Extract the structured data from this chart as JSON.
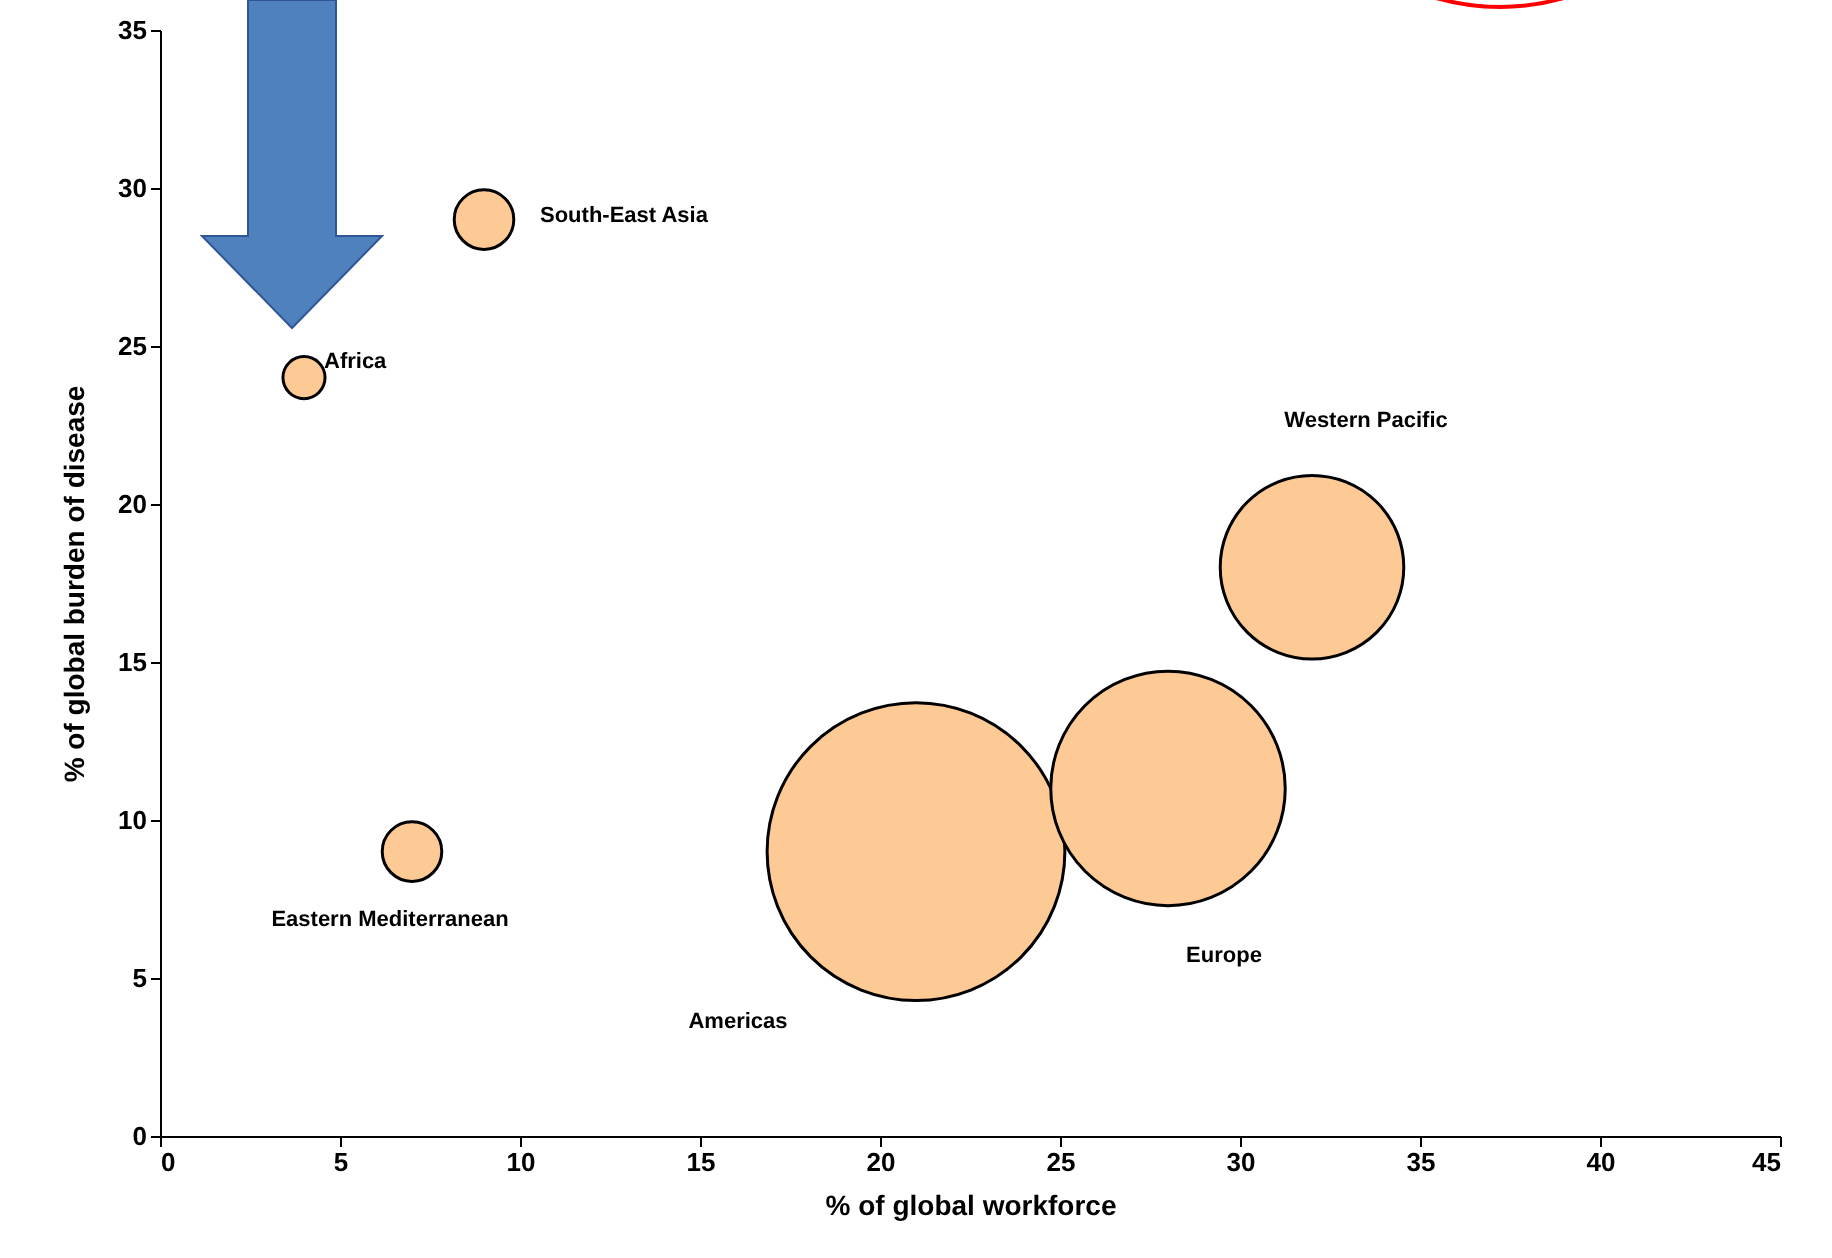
{
  "chart_data": {
    "type": "bubble",
    "xlabel": "% of global workforce",
    "ylabel": "% of global burden of disease",
    "x": [
      4,
      9,
      7,
      21,
      28,
      32
    ],
    "values": [
      24,
      29,
      9,
      9,
      11,
      18
    ],
    "sizes": [
      0.02,
      0.04,
      0.04,
      1,
      0.62,
      0.38
    ],
    "color": "#fdc994",
    "xlim": [
      0,
      45
    ],
    "xticks": [
      0,
      5,
      10,
      15,
      20,
      25,
      30,
      35,
      40,
      45
    ],
    "ylim": [
      0,
      35
    ],
    "yticks": [
      0,
      5,
      10,
      15,
      20,
      25,
      30,
      35
    ],
    "grid": false,
    "legend": false,
    "annotations": [
      {
        "text": "Africa",
        "x": 4,
        "y": 24
      },
      {
        "text": "South-East Asia",
        "x": 9,
        "y": 29
      },
      {
        "text": "Eastern Mediterranean",
        "x": 7,
        "y": 9
      },
      "Americas",
      "Europe",
      "Western Pacific"
    ]
  }
}
